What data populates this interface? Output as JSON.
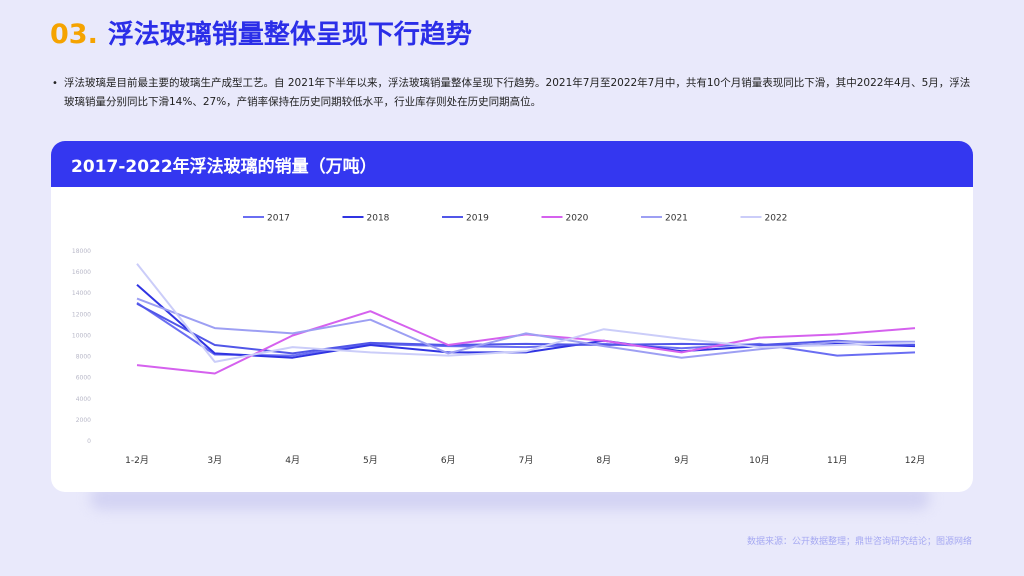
{
  "header": {
    "number": "03.",
    "title": "浮法玻璃销量整体呈现下行趋势"
  },
  "bullet": "浮法玻璃是目前最主要的玻璃生产成型工艺。自 2021年下半年以来，浮法玻璃销量整体呈现下行趋势。2021年7月至2022年7月中，共有10个月销量表现同比下滑，其中2022年4月、5月，浮法玻璃销量分别同比下滑14%、27%，产销率保持在历史同期较低水平，行业库存则处在历史同期高位。",
  "card": {
    "title": "2017-2022年浮法玻璃的销量（万吨）"
  },
  "source": "数据来源：公开数据整理；鼎世咨询研究结论；图源网络",
  "chart_data": {
    "type": "line",
    "title": "2017-2022年浮法玻璃的销量（万吨）",
    "categories": [
      "1-2月",
      "3月",
      "4月",
      "5月",
      "6月",
      "7月",
      "8月",
      "9月",
      "10月",
      "11月",
      "12月"
    ],
    "ylim": [
      0,
      18000
    ],
    "yticks": [
      0,
      2000,
      4000,
      6000,
      8000,
      10000,
      12000,
      14000,
      16000,
      18000
    ],
    "grid": false,
    "legend": "top",
    "series": [
      {
        "name": "2017",
        "color": "#6a6ef2",
        "values": [
          13000,
          8100,
          8000,
          9100,
          8900,
          8800,
          9100,
          8700,
          9100,
          8000,
          8300
        ]
      },
      {
        "name": "2018",
        "color": "#3034e2",
        "values": [
          14700,
          8200,
          7800,
          9000,
          8300,
          8300,
          9400,
          8400,
          8900,
          9100,
          8900
        ]
      },
      {
        "name": "2019",
        "color": "#5156e8",
        "values": [
          12900,
          9000,
          8200,
          9200,
          9000,
          9100,
          9000,
          9100,
          9000,
          9400,
          9000
        ]
      },
      {
        "name": "2020",
        "color": "#d561ee",
        "values": [
          7100,
          6300,
          9900,
          12200,
          9000,
          10000,
          9400,
          8300,
          9700,
          10000,
          10600
        ]
      },
      {
        "name": "2021",
        "color": "#9d9ff3",
        "values": [
          13400,
          10600,
          10100,
          11400,
          8200,
          10100,
          8900,
          7800,
          8600,
          9300,
          9300
        ]
      },
      {
        "name": "2022",
        "color": "#cbcdf9",
        "values": [
          16700,
          7400,
          8800,
          8300,
          8000,
          8400,
          10500,
          9600,
          8800,
          9000,
          9200
        ]
      }
    ]
  }
}
